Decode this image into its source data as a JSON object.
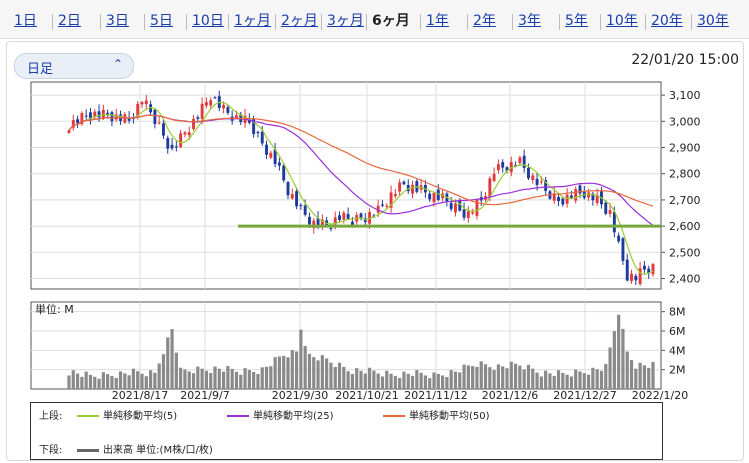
{
  "tabs": [
    "1日",
    "2日",
    "3日",
    "5日",
    "10日",
    "1ヶ月",
    "2ヶ月",
    "3ヶ月",
    "6ヶ月",
    "1年",
    "2年",
    "3年",
    "5年",
    "10年",
    "20年",
    "30年"
  ],
  "active_tab": "6ヶ月",
  "period_select": {
    "value": "日足"
  },
  "datetime": "22/01/20 15:00",
  "colors": {
    "up": "#e23a3a",
    "down": "#1d3a9e",
    "ma5": "#9acd32",
    "ma25": "#9b30d9",
    "ma50": "#e8673c",
    "support": "#77a83a",
    "volume": "#8a8a8a"
  },
  "chart_data": [
    {
      "type": "candlestick",
      "title": "",
      "ylim": [
        2360,
        3150
      ],
      "yticks": [
        "3,100",
        "3,000",
        "2,900",
        "2,800",
        "2,700",
        "2,600",
        "2,500",
        "2,400"
      ],
      "ytick_values": [
        3100,
        3000,
        2900,
        2800,
        2700,
        2600,
        2500,
        2400
      ],
      "xtick_labels": [
        "2021/8/17",
        "2021/9/7",
        "2021/9/30",
        "2021/10/21",
        "2021/11/12",
        "2021/12/6",
        "2021/12/27",
        "2022/1/20"
      ],
      "horizontal_line": {
        "value": 2600
      },
      "control_points": [
        {
          "i": 0,
          "c": 2990
        },
        {
          "i": 5,
          "c": 3030
        },
        {
          "i": 10,
          "c": 3020
        },
        {
          "i": 14,
          "c": 3000
        },
        {
          "i": 17,
          "c": 3080
        },
        {
          "i": 21,
          "c": 2980
        },
        {
          "i": 24,
          "c": 2890
        },
        {
          "i": 27,
          "c": 2960
        },
        {
          "i": 30,
          "c": 3020
        },
        {
          "i": 33,
          "c": 3100
        },
        {
          "i": 36,
          "c": 3040
        },
        {
          "i": 39,
          "c": 3010
        },
        {
          "i": 42,
          "c": 2990
        },
        {
          "i": 45,
          "c": 2920
        },
        {
          "i": 48,
          "c": 2850
        },
        {
          "i": 51,
          "c": 2740
        },
        {
          "i": 54,
          "c": 2660
        },
        {
          "i": 57,
          "c": 2610
        },
        {
          "i": 60,
          "c": 2600
        },
        {
          "i": 63,
          "c": 2630
        },
        {
          "i": 66,
          "c": 2620
        },
        {
          "i": 69,
          "c": 2640
        },
        {
          "i": 72,
          "c": 2660
        },
        {
          "i": 75,
          "c": 2720
        },
        {
          "i": 78,
          "c": 2760
        },
        {
          "i": 81,
          "c": 2740
        },
        {
          "i": 84,
          "c": 2720
        },
        {
          "i": 87,
          "c": 2700
        },
        {
          "i": 90,
          "c": 2670
        },
        {
          "i": 93,
          "c": 2650
        },
        {
          "i": 96,
          "c": 2700
        },
        {
          "i": 99,
          "c": 2810
        },
        {
          "i": 102,
          "c": 2830
        },
        {
          "i": 105,
          "c": 2840
        },
        {
          "i": 108,
          "c": 2780
        },
        {
          "i": 111,
          "c": 2730
        },
        {
          "i": 114,
          "c": 2700
        },
        {
          "i": 117,
          "c": 2720
        },
        {
          "i": 120,
          "c": 2730
        },
        {
          "i": 123,
          "c": 2700
        },
        {
          "i": 126,
          "c": 2650
        },
        {
          "i": 128,
          "c": 2520
        },
        {
          "i": 130,
          "c": 2410
        },
        {
          "i": 132,
          "c": 2400
        },
        {
          "i": 134,
          "c": 2430
        },
        {
          "i": 136,
          "c": 2440
        }
      ],
      "count": 137,
      "series": [
        {
          "name": "単純移動平均(5)",
          "window": 5
        },
        {
          "name": "単純移動平均(25)",
          "window": 25
        },
        {
          "name": "単純移動平均(50)",
          "window": 50
        }
      ]
    },
    {
      "type": "bar",
      "title": "",
      "unit_label": "単位: M",
      "ylim": [
        0,
        9
      ],
      "yticks": [
        "8M",
        "6M",
        "4M",
        "2M"
      ],
      "ytick_values": [
        8,
        6,
        4,
        2
      ],
      "control_points": [
        {
          "i": 0,
          "v": 1.8
        },
        {
          "i": 5,
          "v": 1.3
        },
        {
          "i": 10,
          "v": 1.5
        },
        {
          "i": 15,
          "v": 1.7
        },
        {
          "i": 20,
          "v": 1.6
        },
        {
          "i": 22,
          "v": 4.0
        },
        {
          "i": 24,
          "v": 6.2
        },
        {
          "i": 26,
          "v": 1.8
        },
        {
          "i": 30,
          "v": 2.0
        },
        {
          "i": 35,
          "v": 2.1
        },
        {
          "i": 40,
          "v": 1.8
        },
        {
          "i": 45,
          "v": 2.0
        },
        {
          "i": 50,
          "v": 3.5
        },
        {
          "i": 53,
          "v": 3.8
        },
        {
          "i": 54,
          "v": 6.3
        },
        {
          "i": 56,
          "v": 3.4
        },
        {
          "i": 60,
          "v": 3.0
        },
        {
          "i": 65,
          "v": 2.0
        },
        {
          "i": 70,
          "v": 1.8
        },
        {
          "i": 75,
          "v": 1.5
        },
        {
          "i": 80,
          "v": 1.6
        },
        {
          "i": 85,
          "v": 1.4
        },
        {
          "i": 90,
          "v": 1.8
        },
        {
          "i": 95,
          "v": 2.6
        },
        {
          "i": 100,
          "v": 2.3
        },
        {
          "i": 105,
          "v": 2.5
        },
        {
          "i": 110,
          "v": 1.7
        },
        {
          "i": 115,
          "v": 1.5
        },
        {
          "i": 120,
          "v": 1.8
        },
        {
          "i": 125,
          "v": 2.2
        },
        {
          "i": 128,
          "v": 8.0
        },
        {
          "i": 130,
          "v": 3.8
        },
        {
          "i": 132,
          "v": 2.5
        },
        {
          "i": 136,
          "v": 2.4
        }
      ]
    }
  ],
  "legend": {
    "upper_label": "上段:",
    "lower_label": "下段:",
    "ma5": "単純移動平均(5)",
    "ma25": "単純移動平均(25)",
    "ma50": "単純移動平均(50)",
    "volume": "出来高 単位:(M株/口/枚)"
  }
}
